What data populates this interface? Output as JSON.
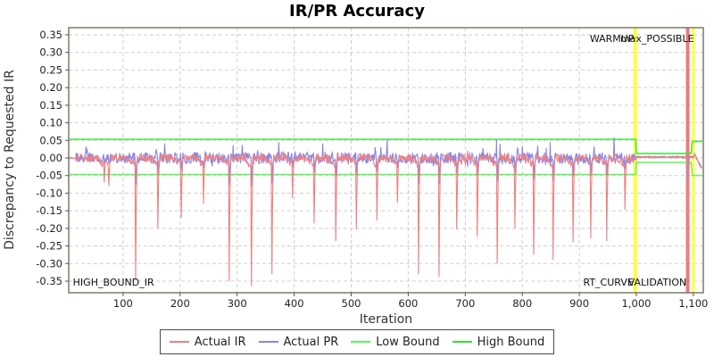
{
  "title": "IR/PR Accuracy",
  "axes": {
    "x_label": "Iteration",
    "y_label": "Discrepancy to Requested IR",
    "x_ticks": [
      [
        100,
        "100"
      ],
      [
        200,
        "200"
      ],
      [
        300,
        "300"
      ],
      [
        400,
        "400"
      ],
      [
        500,
        "500"
      ],
      [
        600,
        "600"
      ],
      [
        700,
        "700"
      ],
      [
        800,
        "800"
      ],
      [
        900,
        "900"
      ],
      [
        1000,
        "1,000"
      ],
      [
        1100,
        "1,100"
      ]
    ],
    "y_ticks": [
      [
        0.35,
        "0.35"
      ],
      [
        0.3,
        "0.30"
      ],
      [
        0.25,
        "0.25"
      ],
      [
        0.2,
        "0.20"
      ],
      [
        0.15,
        "0.15"
      ],
      [
        0.1,
        "0.10"
      ],
      [
        0.05,
        "0.05"
      ],
      [
        0.0,
        "0.00"
      ],
      [
        -0.05,
        "-0.05"
      ],
      [
        -0.1,
        "-0.10"
      ],
      [
        -0.15,
        "-0.15"
      ],
      [
        -0.2,
        "-0.20"
      ],
      [
        -0.25,
        "-0.25"
      ],
      [
        -0.3,
        "-0.30"
      ],
      [
        -0.35,
        "-0.35"
      ]
    ]
  },
  "chart_data": {
    "type": "line",
    "title": "IR/PR Accuracy",
    "xlabel": "Iteration",
    "ylabel": "Discrepancy to Requested IR",
    "xlim": [
      6,
      1115
    ],
    "ylim": [
      -0.383,
      0.37
    ],
    "grid": true,
    "legend_position": "bottom",
    "colors": {
      "actual_ir": "#f08080",
      "actual_pr": "#8787e6",
      "low_bound": "#5cf75c",
      "high_bound": "#30e530",
      "marker_yellow": "#ffff3a",
      "marker_red": "#ec6262",
      "plot_border": "#73735a",
      "grid_line": "#cfcfcf"
    },
    "series": [
      {
        "name": "Actual IR",
        "color": "#f08080",
        "kind": "noisy",
        "baseline": 0.0,
        "noise": 0.011,
        "flat_after": 1000,
        "flat_value": 0.002,
        "tail_start": 1102,
        "tail_start_value": 0.012,
        "tail_slope": -0.0035,
        "spikes": [
          [
            67,
            -0.07
          ],
          [
            75,
            -0.08
          ],
          [
            122,
            -0.348
          ],
          [
            161,
            -0.2
          ],
          [
            202,
            -0.17
          ],
          [
            241,
            -0.13
          ],
          [
            286,
            -0.35
          ],
          [
            325,
            -0.365
          ],
          [
            361,
            -0.33
          ],
          [
            397,
            -0.114
          ],
          [
            435,
            -0.186
          ],
          [
            473,
            -0.236
          ],
          [
            509,
            -0.203
          ],
          [
            545,
            -0.178
          ],
          [
            581,
            -0.127
          ],
          [
            618,
            -0.33
          ],
          [
            654,
            -0.338
          ],
          [
            685,
            -0.203
          ],
          [
            721,
            -0.223
          ],
          [
            756,
            -0.3
          ],
          [
            787,
            -0.2
          ],
          [
            820,
            -0.275
          ],
          [
            854,
            -0.29
          ],
          [
            889,
            -0.24
          ],
          [
            920,
            -0.229
          ],
          [
            948,
            -0.236
          ],
          [
            980,
            -0.147
          ],
          [
            1090,
            -0.3
          ]
        ]
      },
      {
        "name": "Actual PR",
        "color": "#8787e6",
        "kind": "noisy",
        "baseline": 0.0,
        "noise": 0.016,
        "flat_after": 1000,
        "flat_value": 0.003,
        "tail_start": 1102,
        "tail_start_value": 0.01,
        "tail_slope": -0.003,
        "spike_follow": 0.22
      },
      {
        "name": "Low Bound",
        "color": "#5cf75c",
        "kind": "step",
        "points": [
          [
            6,
            -0.047
          ],
          [
            999,
            -0.047
          ],
          [
            1000,
            -0.0128
          ],
          [
            1096,
            -0.0128
          ],
          [
            1098,
            -0.05
          ],
          [
            1115,
            -0.05
          ]
        ]
      },
      {
        "name": "High Bound",
        "color": "#30e530",
        "kind": "step",
        "points": [
          [
            6,
            0.053
          ],
          [
            999,
            0.053
          ],
          [
            1000,
            0.0128
          ],
          [
            1096,
            0.0128
          ],
          [
            1098,
            0.047
          ],
          [
            1115,
            0.047
          ]
        ]
      }
    ],
    "markers": [
      {
        "name": "warmup-end-line",
        "x": 998,
        "color": "#ffff3a",
        "w": 4,
        "opacity": 1
      },
      {
        "name": "validation-end-line",
        "x": 1090,
        "color": "#ec6262",
        "w": 4,
        "opacity": 0.85
      },
      {
        "name": "max-possible-line",
        "x": 1100,
        "color": "#ffff3a",
        "w": 3,
        "opacity": 1
      }
    ],
    "annotations": [
      {
        "id": "warmup",
        "text": "WARMUP",
        "x": 996,
        "y": 0.34,
        "anchor": "end"
      },
      {
        "id": "max-possible",
        "text": "max_POSSIBLE",
        "x": 1101,
        "y": 0.34,
        "anchor": "end"
      },
      {
        "id": "high-bound-ir",
        "text": "HIGH_BOUND_IR",
        "x": 12,
        "y": -0.352,
        "anchor": "start"
      },
      {
        "id": "rt-curve",
        "text": "RT_CURVE",
        "x": 995,
        "y": -0.352,
        "anchor": "end"
      },
      {
        "id": "validation",
        "text": "VALIDATION",
        "x": 1088,
        "y": -0.352,
        "anchor": "end"
      }
    ]
  },
  "legend": {
    "items": [
      {
        "label": "Actual IR",
        "color": "#f08080"
      },
      {
        "label": "Actual PR",
        "color": "#8787e6"
      },
      {
        "label": "Low Bound",
        "color": "#5cf75c"
      },
      {
        "label": "High Bound",
        "color": "#30e530"
      }
    ]
  }
}
